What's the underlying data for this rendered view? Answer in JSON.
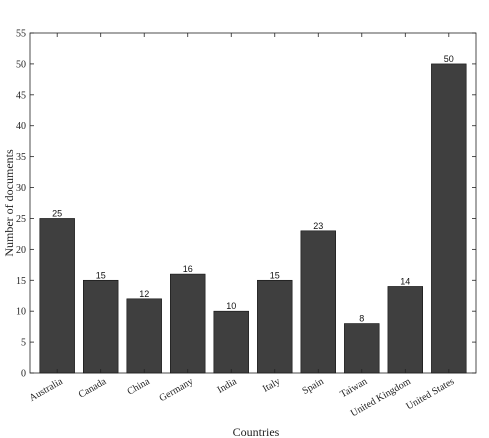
{
  "chart_data": {
    "type": "bar",
    "title": "",
    "xlabel": "Countries",
    "ylabel": "Number of documents",
    "categories": [
      "Australia",
      "Canada",
      "China",
      "Germany",
      "India",
      "Italy",
      "Spain",
      "Taiwan",
      "United Kingdom",
      "United States"
    ],
    "values": [
      25,
      15,
      12,
      16,
      10,
      15,
      23,
      8,
      14,
      50
    ],
    "data_labels": [
      "25",
      "15",
      "12",
      "16",
      "10",
      "15",
      "23",
      "8",
      "14",
      "50"
    ],
    "ylim": [
      0,
      55
    ],
    "yticks": [
      0,
      5,
      10,
      15,
      20,
      25,
      30,
      35,
      40,
      45,
      50,
      55
    ],
    "ytick_labels": [
      "0",
      "5",
      "10",
      "15",
      "20",
      "25",
      "30",
      "35",
      "40",
      "45",
      "50",
      "55"
    ],
    "grid": false,
    "legend": "none",
    "bar_color": "#3f3f3f"
  }
}
